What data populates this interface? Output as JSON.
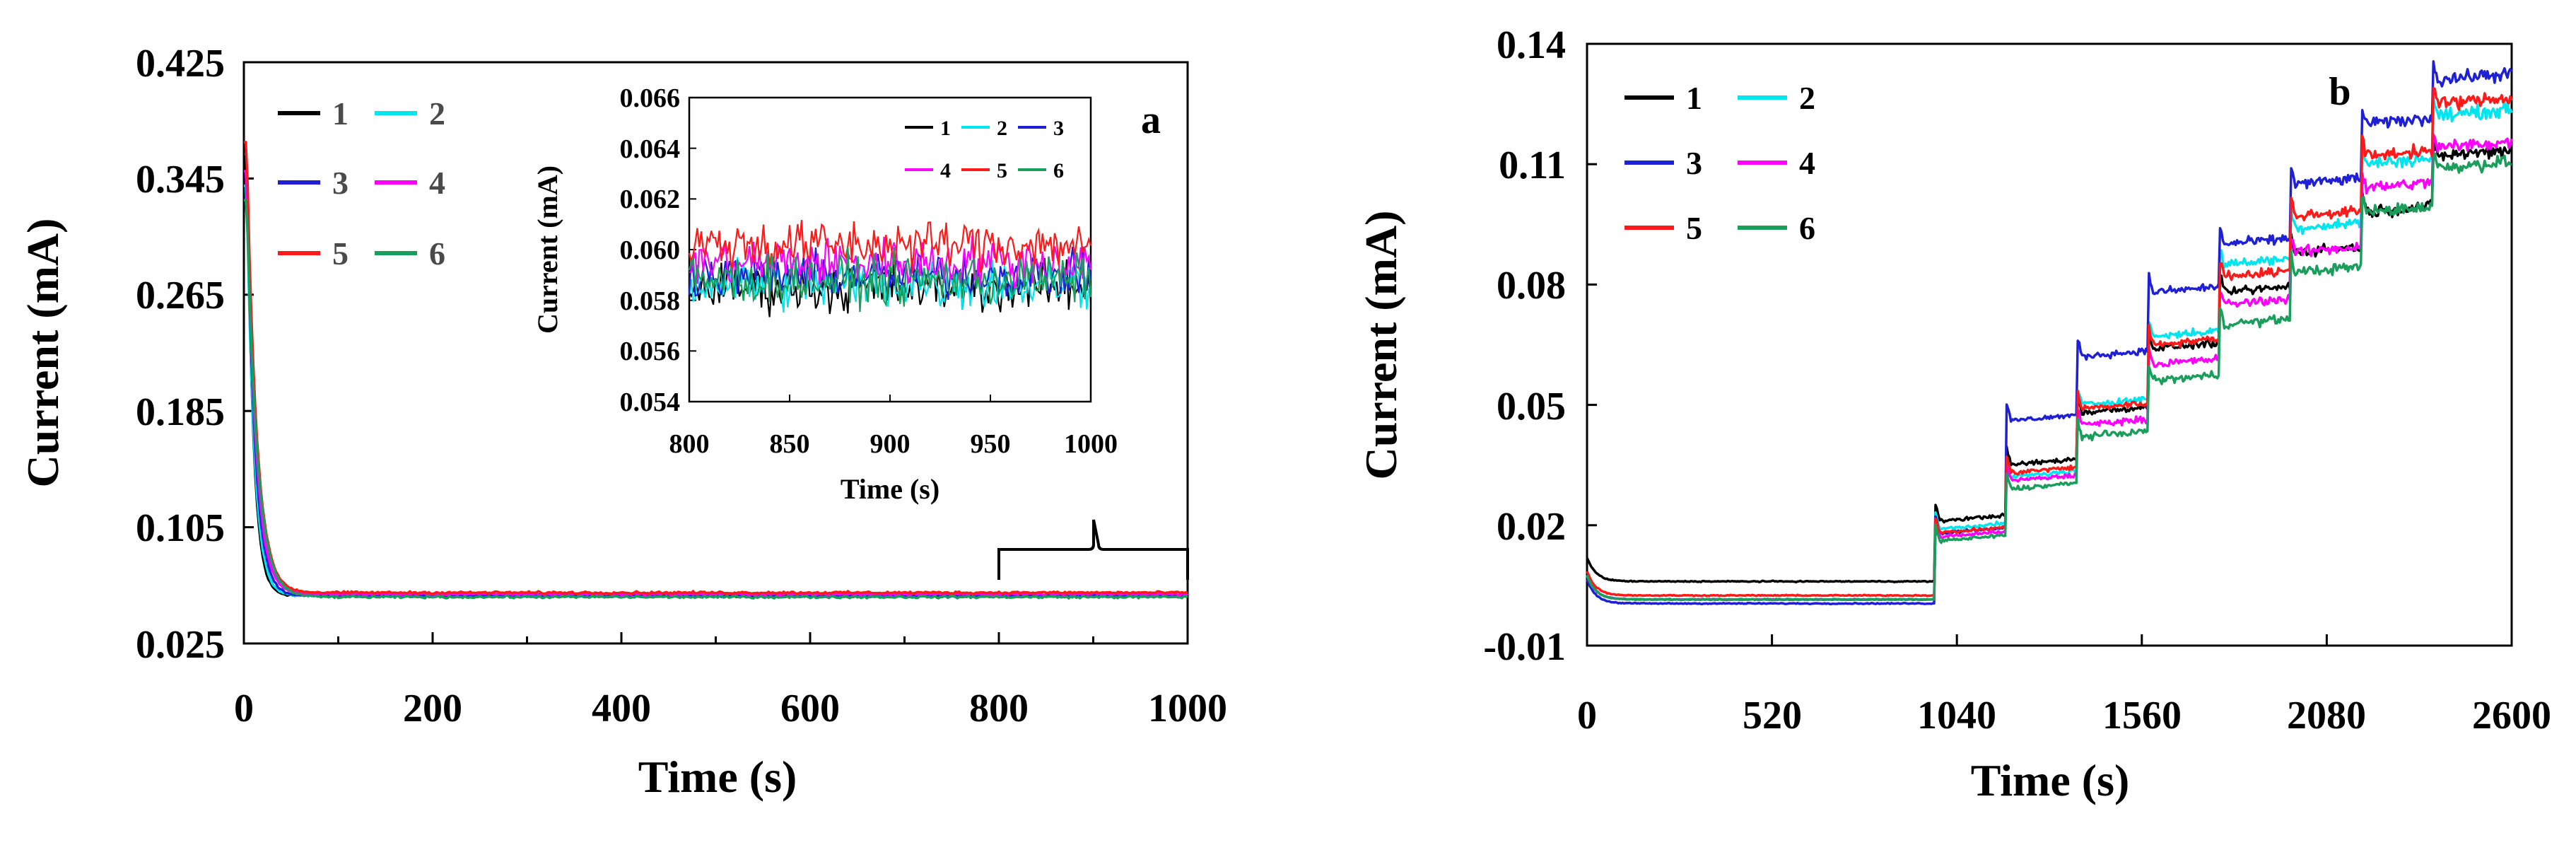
{
  "chart_data": [
    {
      "id": "a",
      "type": "line",
      "panel_label": "a",
      "xlabel": "Time (s)",
      "ylabel": "Current (mA)",
      "xlim": [
        0,
        1000
      ],
      "ylim": [
        0.025,
        0.425
      ],
      "xticks": [
        0,
        200,
        400,
        600,
        800,
        1000
      ],
      "xtick_labels": [
        "0",
        "200",
        "400",
        "600",
        "800",
        "1000"
      ],
      "yticks": [
        0.025,
        0.105,
        0.185,
        0.265,
        0.345,
        0.425
      ],
      "ytick_labels": [
        "0.025",
        "0.105",
        "0.185",
        "0.265",
        "0.345",
        "0.425"
      ],
      "annotation": "bracket spanning 800-1000 s marking the inset region",
      "series": [
        {
          "name": "1",
          "color": "#000000",
          "initial": 0.36,
          "steady": 0.058
        },
        {
          "name": "2",
          "color": "#00e5ee",
          "initial": 0.34,
          "steady": 0.058
        },
        {
          "name": "3",
          "color": "#1f1fd6",
          "initial": 0.35,
          "steady": 0.058
        },
        {
          "name": "4",
          "color": "#ff00ff",
          "initial": 0.35,
          "steady": 0.059
        },
        {
          "name": "5",
          "color": "#ff1a1a",
          "initial": 0.37,
          "steady": 0.06
        },
        {
          "name": "6",
          "color": "#1a9e5c",
          "initial": 0.33,
          "steady": 0.057
        }
      ],
      "inset": {
        "xlabel": "Time (s)",
        "ylabel": "Current (mA)",
        "xlim": [
          800,
          1000
        ],
        "ylim": [
          0.054,
          0.066
        ],
        "xticks": [
          800,
          850,
          900,
          950,
          1000
        ],
        "xtick_labels": [
          "800",
          "850",
          "900",
          "950",
          "1000"
        ],
        "yticks": [
          0.054,
          0.056,
          0.058,
          0.06,
          0.062,
          0.064,
          0.066
        ],
        "ytick_labels": [
          "0.054",
          "0.056",
          "0.058",
          "0.060",
          "0.062",
          "0.064",
          "0.066"
        ],
        "series": [
          {
            "name": "1",
            "color": "#000000",
            "mean": 0.0585,
            "noise": 0.0009
          },
          {
            "name": "2",
            "color": "#00e5ee",
            "mean": 0.0587,
            "noise": 0.001
          },
          {
            "name": "3",
            "color": "#1f1fd6",
            "mean": 0.059,
            "noise": 0.0008
          },
          {
            "name": "4",
            "color": "#ff00ff",
            "mean": 0.0595,
            "noise": 0.0009
          },
          {
            "name": "5",
            "color": "#ff1a1a",
            "mean": 0.0602,
            "noise": 0.0009
          },
          {
            "name": "6",
            "color": "#1a9e5c",
            "mean": 0.0588,
            "noise": 0.0009
          }
        ]
      }
    },
    {
      "id": "b",
      "type": "line",
      "panel_label": "b",
      "xlabel": "Time (s)",
      "ylabel": "Current (mA)",
      "xlim": [
        0,
        2600
      ],
      "ylim": [
        -0.01,
        0.14
      ],
      "xticks": [
        0,
        520,
        1040,
        1560,
        2080,
        2600
      ],
      "xtick_labels": [
        "0",
        "520",
        "1040",
        "1560",
        "2080",
        "2600"
      ],
      "yticks": [
        -0.01,
        0.02,
        0.05,
        0.08,
        0.11,
        0.14
      ],
      "ytick_labels": [
        "-0.01",
        "0.02",
        "0.05",
        "0.08",
        "0.11",
        "0.14"
      ],
      "step_times": [
        0,
        980,
        1180,
        1380,
        1580,
        1780,
        1980,
        2180,
        2380
      ],
      "series": [
        {
          "name": "1",
          "color": "#000000",
          "levels": [
            0.006,
            0.021,
            0.035,
            0.048,
            0.064,
            0.078,
            0.088,
            0.098,
            0.112
          ]
        },
        {
          "name": "2",
          "color": "#00e5ee",
          "levels": [
            0.002,
            0.019,
            0.032,
            0.05,
            0.067,
            0.085,
            0.094,
            0.11,
            0.122
          ]
        },
        {
          "name": "3",
          "color": "#1f1fd6",
          "levels": [
            0.001,
            0.018,
            0.046,
            0.062,
            0.078,
            0.09,
            0.105,
            0.12,
            0.131
          ]
        },
        {
          "name": "4",
          "color": "#ff00ff",
          "levels": [
            0.002,
            0.017,
            0.031,
            0.045,
            0.06,
            0.075,
            0.088,
            0.104,
            0.114
          ]
        },
        {
          "name": "5",
          "color": "#ff1a1a",
          "levels": [
            0.003,
            0.018,
            0.033,
            0.049,
            0.065,
            0.082,
            0.097,
            0.112,
            0.125
          ]
        },
        {
          "name": "6",
          "color": "#1a9e5c",
          "levels": [
            0.002,
            0.016,
            0.029,
            0.042,
            0.056,
            0.07,
            0.083,
            0.098,
            0.109
          ]
        }
      ]
    }
  ]
}
